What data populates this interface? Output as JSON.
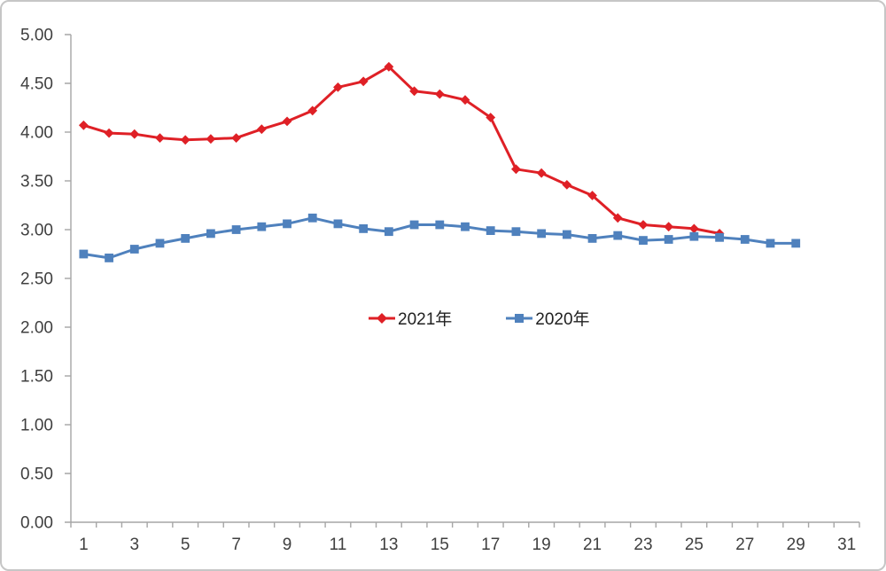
{
  "figure": {
    "background": "#ffffff",
    "border_color": "#c6c6c6"
  },
  "axes": {
    "line_color": "#a6a6a6",
    "tick_label_color": "#3f3f3f"
  },
  "legend": {
    "items": [
      {
        "label": "2021年",
        "color": "#df2026",
        "marker": "diamond"
      },
      {
        "label": "2020年",
        "color": "#4f81bd",
        "marker": "square"
      }
    ]
  },
  "chart_data": {
    "type": "line",
    "title": "",
    "xlabel": "",
    "ylabel": "",
    "xlim": [
      1,
      31
    ],
    "ylim": [
      0,
      5
    ],
    "y_tick_step": 0.5,
    "y_tick_labels": [
      "0.00",
      "0.50",
      "1.00",
      "1.50",
      "2.00",
      "2.50",
      "3.00",
      "3.50",
      "4.00",
      "4.50",
      "5.00"
    ],
    "x_tick_labels": [
      "1",
      "3",
      "5",
      "7",
      "9",
      "11",
      "13",
      "15",
      "17",
      "19",
      "21",
      "23",
      "25",
      "27",
      "29",
      "31"
    ],
    "grid": false,
    "legend_position": "center-middle",
    "series": [
      {
        "name": "2021年",
        "color": "#df2026",
        "marker": "diamond",
        "x": [
          1,
          2,
          3,
          4,
          5,
          6,
          7,
          8,
          9,
          10,
          11,
          12,
          13,
          14,
          15,
          16,
          17,
          18,
          19,
          20,
          21,
          22,
          23,
          24,
          25,
          26
        ],
        "values": [
          4.07,
          3.99,
          3.98,
          3.94,
          3.92,
          3.93,
          3.94,
          4.03,
          4.11,
          4.22,
          4.46,
          4.52,
          4.67,
          4.42,
          4.39,
          4.33,
          4.15,
          3.62,
          3.58,
          3.46,
          3.35,
          3.12,
          3.05,
          3.03,
          3.01,
          2.96
        ]
      },
      {
        "name": "2020年",
        "color": "#4f81bd",
        "marker": "square",
        "x": [
          1,
          2,
          3,
          4,
          5,
          6,
          7,
          8,
          9,
          10,
          11,
          12,
          13,
          14,
          15,
          16,
          17,
          18,
          19,
          20,
          21,
          22,
          23,
          24,
          25,
          26,
          27,
          28,
          29
        ],
        "values": [
          2.75,
          2.71,
          2.8,
          2.86,
          2.91,
          2.96,
          3.0,
          3.03,
          3.06,
          3.12,
          3.06,
          3.01,
          2.98,
          3.05,
          3.05,
          3.03,
          2.99,
          2.98,
          2.96,
          2.95,
          2.91,
          2.94,
          2.89,
          2.9,
          2.93,
          2.92,
          2.9,
          2.86,
          2.86
        ]
      }
    ]
  }
}
